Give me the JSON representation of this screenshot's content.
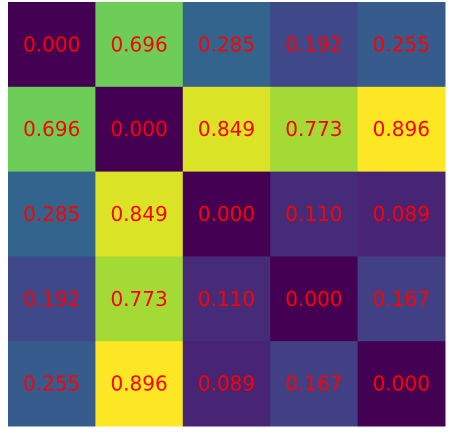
{
  "chart_data": {
    "type": "heatmap",
    "title": "",
    "xlabel": "",
    "ylabel": "",
    "rows": 5,
    "cols": 5,
    "values": [
      [
        0.0,
        0.696,
        0.285,
        0.192,
        0.255
      ],
      [
        0.696,
        0.0,
        0.849,
        0.773,
        0.896
      ],
      [
        0.285,
        0.849,
        0.0,
        0.11,
        0.089
      ],
      [
        0.192,
        0.773,
        0.11,
        0.0,
        0.167
      ],
      [
        0.255,
        0.896,
        0.089,
        0.167,
        0.0
      ]
    ],
    "labels": [
      [
        "0.000",
        "0.696",
        "0.285",
        "0.192",
        "0.255"
      ],
      [
        "0.696",
        "0.000",
        "0.849",
        "0.773",
        "0.896"
      ],
      [
        "0.285",
        "0.849",
        "0.000",
        "0.110",
        "0.089"
      ],
      [
        "0.192",
        "0.773",
        "0.110",
        "0.000",
        "0.167"
      ],
      [
        "0.255",
        "0.896",
        "0.089",
        "0.167",
        "0.000"
      ]
    ],
    "colormap": "viridis",
    "value_range": [
      0.0,
      0.896
    ],
    "label_color": "#ff0000",
    "grid": false,
    "legend": "none"
  }
}
